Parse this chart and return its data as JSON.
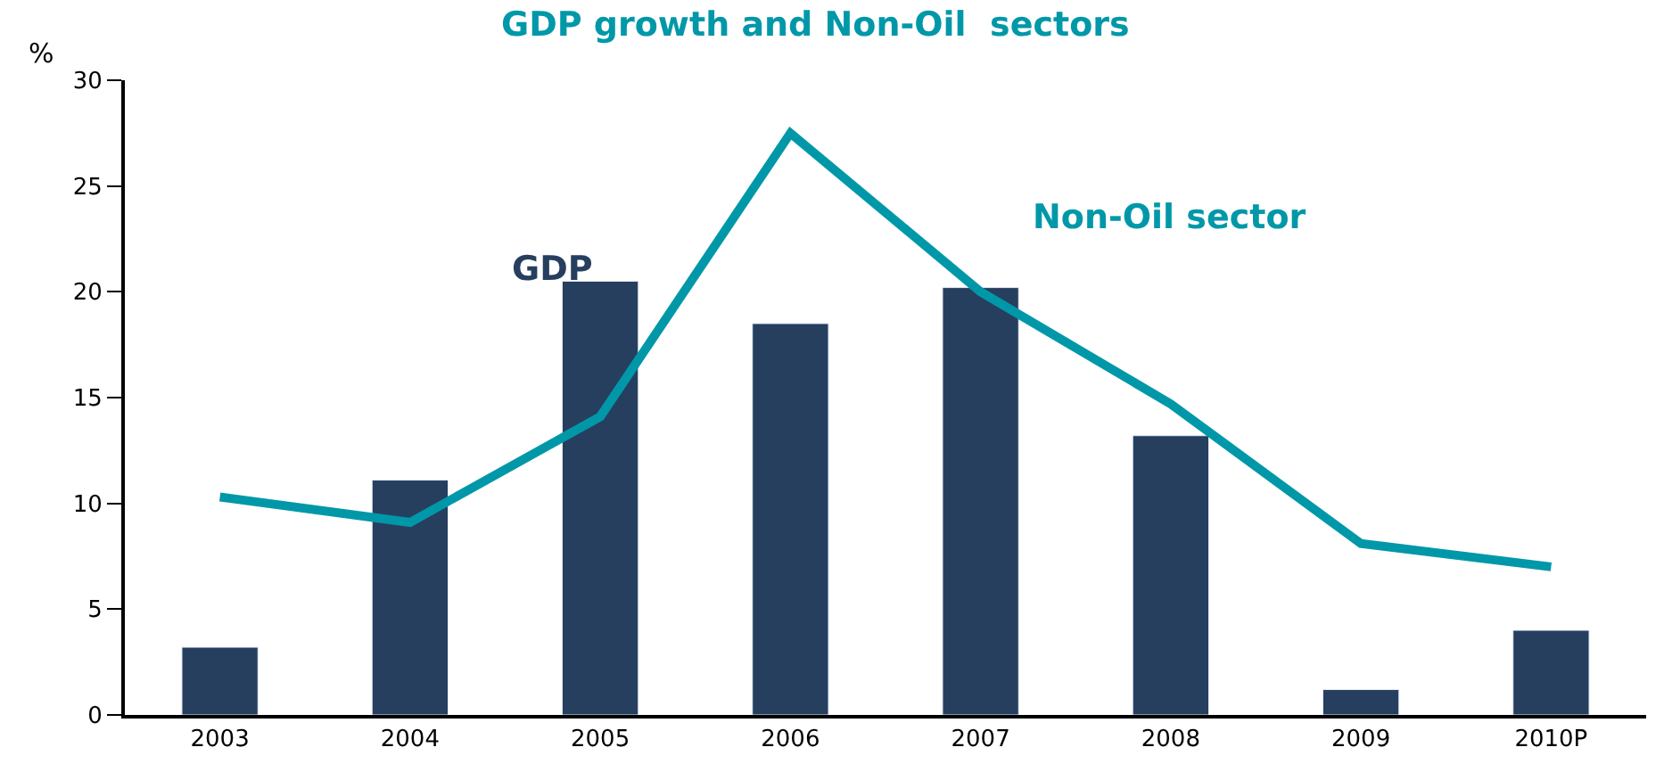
{
  "chart_data": {
    "type": "bar",
    "title": "GDP growth and Non-Oil  sectors",
    "ylabel": "%",
    "categories": [
      "2003",
      "2004",
      "2005",
      "2006",
      "2007",
      "2008",
      "2009",
      "2010P"
    ],
    "series": [
      {
        "name": "GDP",
        "color": "#263f5f",
        "values": [
          3.2,
          11.1,
          20.5,
          18.5,
          20.2,
          13.2,
          1.2,
          4.0
        ]
      },
      {
        "name": "Non-Oil sector",
        "type": "line",
        "color": "#0098a8",
        "values": [
          10.3,
          9.1,
          14.1,
          27.5,
          20.0,
          14.7,
          8.1,
          7.0
        ]
      }
    ],
    "ylim": [
      0,
      30
    ],
    "yticks": [
      0,
      5,
      10,
      15,
      20,
      25,
      30
    ],
    "legend": false
  }
}
